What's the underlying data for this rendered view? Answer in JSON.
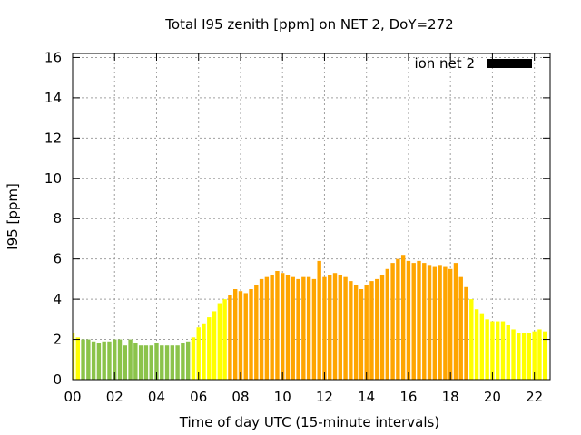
{
  "chart_data": {
    "type": "bar",
    "title": "Total I95 zenith [ppm] on NET 2, DoY=272",
    "xlabel": "Time of day UTC (15-minute intervals)",
    "ylabel": "I95 [ppm]",
    "xlim": [
      0,
      22.75
    ],
    "ylim": [
      0,
      16.2
    ],
    "x_ticks": [
      "00",
      "02",
      "04",
      "06",
      "08",
      "10",
      "12",
      "14",
      "16",
      "18",
      "20",
      "22"
    ],
    "y_ticks": [
      "0",
      "2",
      "4",
      "6",
      "8",
      "10",
      "12",
      "14",
      "16"
    ],
    "grid": true,
    "legend": {
      "label": "ion net 2",
      "color": "#000000",
      "placement": "top-right"
    },
    "bar_step_hours": 0.25,
    "colors": {
      "green": "#8bc34a",
      "yellow": "#ffff00",
      "orange": "#ffa500"
    },
    "series": [
      {
        "name": "ion net 2",
        "start_hour": 0.0,
        "values": [
          2.3,
          2.1,
          2.0,
          2.0,
          1.9,
          1.8,
          1.9,
          1.9,
          2.0,
          2.0,
          1.7,
          2.0,
          1.8,
          1.7,
          1.7,
          1.7,
          1.8,
          1.7,
          1.7,
          1.7,
          1.7,
          1.8,
          1.9,
          2.1,
          2.6,
          2.8,
          3.1,
          3.4,
          3.8,
          4.0,
          4.2,
          4.5,
          4.4,
          4.3,
          4.5,
          4.7,
          5.0,
          5.1,
          5.2,
          5.4,
          5.3,
          5.2,
          5.1,
          5.0,
          5.1,
          5.1,
          5.0,
          5.9,
          5.1,
          5.2,
          5.3,
          5.2,
          5.1,
          4.9,
          4.7,
          4.5,
          4.7,
          4.9,
          5.0,
          5.2,
          5.5,
          5.8,
          6.0,
          6.2,
          5.9,
          5.8,
          5.9,
          5.8,
          5.7,
          5.6,
          5.7,
          5.6,
          5.5,
          5.8,
          5.1,
          4.6,
          4.0,
          3.5,
          3.3,
          3.0,
          2.9,
          2.9,
          2.9,
          2.7,
          2.5,
          2.3,
          2.3,
          2.3,
          2.4,
          2.5,
          2.4
        ],
        "value_colors": [
          "yellow",
          "yellow",
          "green",
          "green",
          "green",
          "green",
          "green",
          "green",
          "green",
          "green",
          "green",
          "green",
          "green",
          "green",
          "green",
          "green",
          "green",
          "green",
          "green",
          "green",
          "green",
          "green",
          "green",
          "yellow",
          "yellow",
          "yellow",
          "yellow",
          "yellow",
          "yellow",
          "yellow",
          "orange",
          "orange",
          "orange",
          "orange",
          "orange",
          "orange",
          "orange",
          "orange",
          "orange",
          "orange",
          "orange",
          "orange",
          "orange",
          "orange",
          "orange",
          "orange",
          "orange",
          "orange",
          "orange",
          "orange",
          "orange",
          "orange",
          "orange",
          "orange",
          "orange",
          "orange",
          "orange",
          "orange",
          "orange",
          "orange",
          "orange",
          "orange",
          "orange",
          "orange",
          "orange",
          "orange",
          "orange",
          "orange",
          "orange",
          "orange",
          "orange",
          "orange",
          "orange",
          "orange",
          "orange",
          "orange",
          "yellow",
          "yellow",
          "yellow",
          "yellow",
          "yellow",
          "yellow",
          "yellow",
          "yellow",
          "yellow",
          "yellow",
          "yellow",
          "yellow",
          "yellow",
          "yellow",
          "yellow"
        ]
      }
    ]
  }
}
